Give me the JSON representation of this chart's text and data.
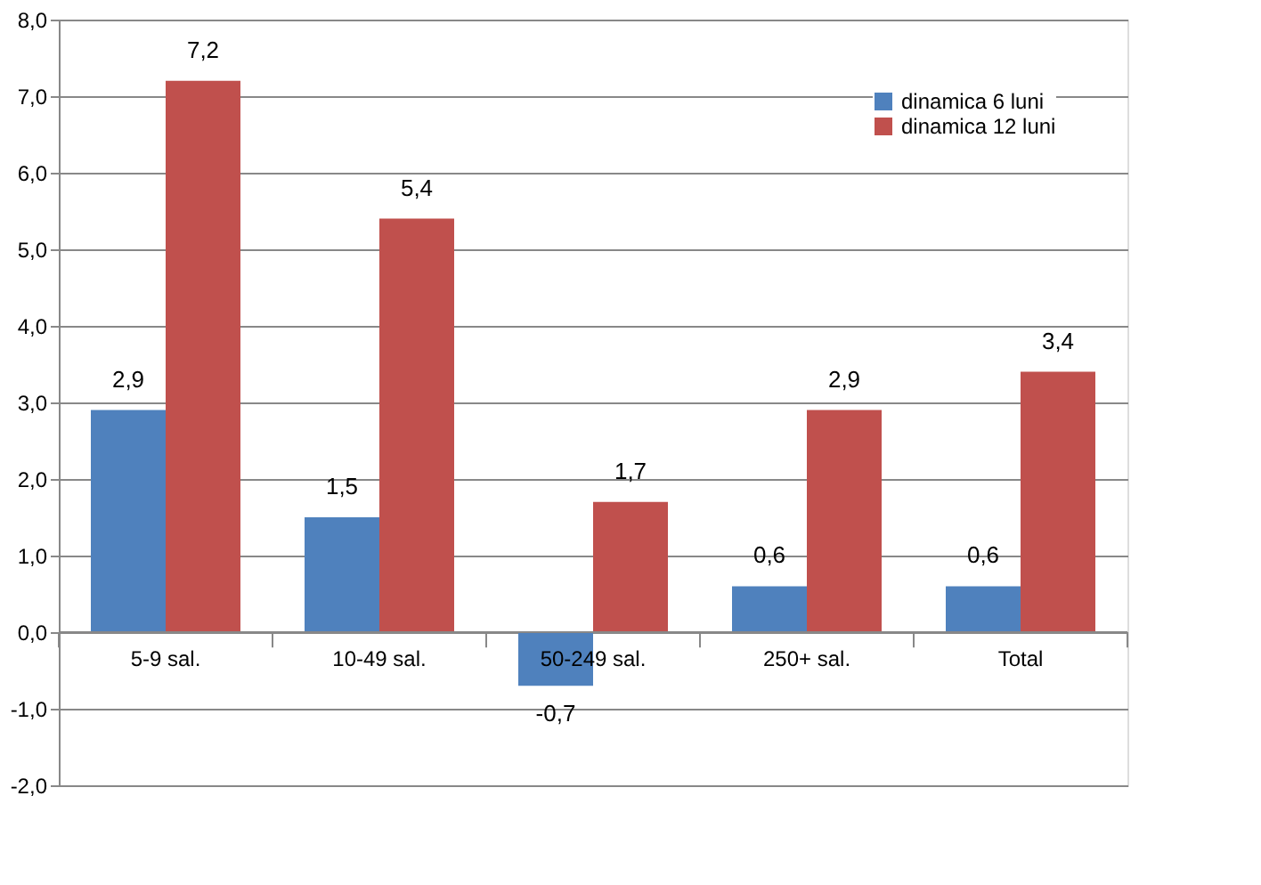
{
  "chart_data": {
    "type": "bar",
    "categories": [
      "5-9 sal.",
      "10-49 sal.",
      "50-249 sal.",
      "250+ sal.",
      "Total"
    ],
    "series": [
      {
        "name": "dinamica 6 luni",
        "color": "#4f81bd",
        "values": [
          2.9,
          1.5,
          -0.7,
          0.6,
          0.6
        ],
        "value_labels": [
          "2,9",
          "1,5",
          "-0,7",
          "0,6",
          "0,6"
        ]
      },
      {
        "name": "dinamica 12 luni",
        "color": "#c0504d",
        "values": [
          7.2,
          5.4,
          1.7,
          2.9,
          3.4
        ],
        "value_labels": [
          "7,2",
          "5,4",
          "1,7",
          "2,9",
          "3,4"
        ]
      }
    ],
    "ylim": [
      -2,
      8
    ],
    "yticks": [
      {
        "value": -2,
        "label": "-2,0"
      },
      {
        "value": -1,
        "label": "-1,0"
      },
      {
        "value": 0,
        "label": "0,0"
      },
      {
        "value": 1,
        "label": "1,0"
      },
      {
        "value": 2,
        "label": "2,0"
      },
      {
        "value": 3,
        "label": "3,0"
      },
      {
        "value": 4,
        "label": "4,0"
      },
      {
        "value": 5,
        "label": "5,0"
      },
      {
        "value": 6,
        "label": "6,0"
      },
      {
        "value": 7,
        "label": "7,0"
      },
      {
        "value": 8,
        "label": "8,0"
      }
    ],
    "grid": "y",
    "legend": "top right"
  }
}
